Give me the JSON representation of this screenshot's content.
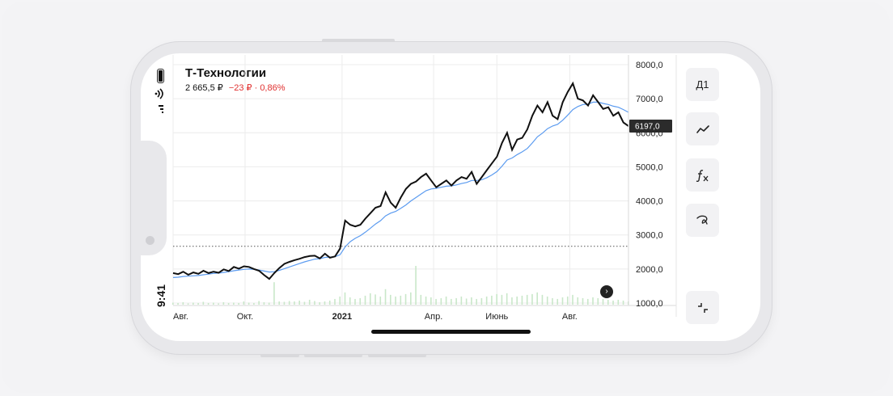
{
  "status_bar": {
    "time": "9:41"
  },
  "instrument": {
    "name": "Т-Технологии",
    "price": "2 665,5 ₽",
    "change": "−23 ₽ · 0,86%"
  },
  "toolbar": {
    "period_label": "Д1",
    "indicator_icon": "line-chart-icon",
    "function_icon": "fx-icon",
    "draw_icon": "draw-icon",
    "collapse_icon": "collapse-icon"
  },
  "colors": {
    "price_line": "#111111",
    "moving_average": "#5b9bf0",
    "volume": "#c9e7c9",
    "change_negative": "#e0302f",
    "last_price_tag": "#2b2b2b",
    "grid": "#ececec"
  },
  "chart_data": {
    "type": "line",
    "x_tick_labels": [
      "Авг.",
      "Окт.",
      "2021",
      "Апр.",
      "Июнь",
      "Авг."
    ],
    "y_tick_labels": [
      "8000,0",
      "7000,0",
      "6000,0",
      "5000,0",
      "4000,0",
      "3000,0",
      "2000,0",
      "1000,0"
    ],
    "ylim": [
      1000,
      8000
    ],
    "last_value_label": "6197,0",
    "reference_level": 2665.5,
    "grid": true,
    "series": [
      {
        "values": [
          1880,
          1850,
          1920,
          1830,
          1900,
          1860,
          1950,
          1880,
          1920,
          1890,
          1990,
          1940,
          2060,
          2010,
          2080,
          2060,
          2000,
          1950,
          1820,
          1710,
          1880,
          2030,
          2150,
          2210,
          2260,
          2300,
          2350,
          2380,
          2390,
          2310,
          2450,
          2330,
          2370,
          2600,
          3420,
          3300,
          3250,
          3300,
          3480,
          3640,
          3800,
          3850,
          4250,
          3950,
          3800,
          4100,
          4350,
          4500,
          4570,
          4700,
          4800,
          4600,
          4400,
          4500,
          4600,
          4450,
          4600,
          4700,
          4650,
          4850,
          4500,
          4700,
          4900,
          5100,
          5300,
          5700,
          6000,
          5500,
          5800,
          5850,
          6100,
          6500,
          6800,
          6600,
          6900,
          6500,
          6400,
          6900,
          7200,
          7450,
          7000,
          6950,
          6800,
          7100,
          6900,
          6700,
          6750,
          6500,
          6600,
          6300,
          6197
        ]
      },
      {
        "values": [
          1750,
          1760,
          1780,
          1790,
          1800,
          1810,
          1830,
          1850,
          1870,
          1880,
          1900,
          1920,
          1950,
          1970,
          1990,
          2000,
          1990,
          1970,
          1940,
          1910,
          1920,
          1960,
          2010,
          2060,
          2110,
          2160,
          2210,
          2250,
          2290,
          2300,
          2340,
          2350,
          2360,
          2420,
          2650,
          2800,
          2900,
          2980,
          3080,
          3200,
          3320,
          3420,
          3560,
          3640,
          3690,
          3780,
          3880,
          4000,
          4100,
          4200,
          4300,
          4350,
          4370,
          4400,
          4430,
          4440,
          4470,
          4510,
          4540,
          4600,
          4600,
          4620,
          4680,
          4760,
          4860,
          5020,
          5200,
          5260,
          5360,
          5440,
          5540,
          5700,
          5880,
          5990,
          6120,
          6200,
          6250,
          6370,
          6520,
          6680,
          6770,
          6830,
          6840,
          6900,
          6900,
          6860,
          6830,
          6780,
          6750,
          6680,
          6600
        ]
      }
    ],
    "volume": [
      5,
      4,
      6,
      3,
      5,
      4,
      7,
      4,
      5,
      3,
      6,
      4,
      5,
      4,
      8,
      5,
      4,
      9,
      6,
      5,
      55,
      8,
      7,
      9,
      8,
      10,
      7,
      12,
      9,
      6,
      8,
      10,
      14,
      20,
      30,
      18,
      14,
      16,
      22,
      28,
      25,
      20,
      38,
      24,
      20,
      22,
      26,
      30,
      95,
      24,
      20,
      18,
      14,
      16,
      20,
      14,
      16,
      20,
      15,
      18,
      14,
      16,
      20,
      22,
      26,
      24,
      28,
      18,
      20,
      22,
      24,
      26,
      30,
      24,
      20,
      16,
      14,
      18,
      20,
      24,
      18,
      16,
      14,
      18,
      16,
      14,
      12,
      10,
      12,
      10,
      8
    ]
  }
}
